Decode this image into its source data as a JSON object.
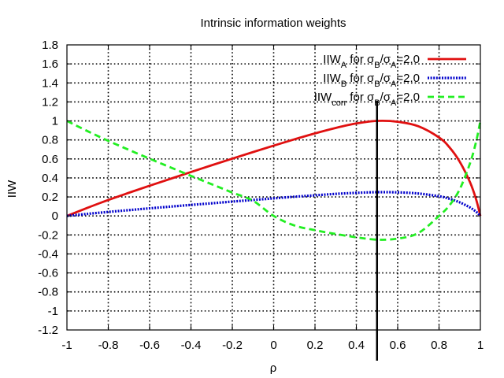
{
  "chart_data": {
    "type": "line",
    "title": "Intrinsic information weights",
    "xlabel": "ρ",
    "ylabel": "IIW",
    "xlim": [
      -1,
      1
    ],
    "ylim": [
      -1.2,
      1.8
    ],
    "xticks": [
      -1,
      -0.8,
      -0.6,
      -0.4,
      -0.2,
      0,
      0.2,
      0.4,
      0.6,
      0.8,
      1
    ],
    "xtick_labels": [
      "-1",
      "-0.8",
      "-0.6",
      "-0.4",
      "-0.2",
      "0",
      "0.2",
      "0.4",
      "0.6",
      "0.8",
      "1"
    ],
    "yticks": [
      -1.2,
      -1,
      -0.8,
      -0.6,
      -0.4,
      -0.2,
      0,
      0.2,
      0.4,
      0.6,
      0.8,
      1,
      1.2,
      1.4,
      1.6,
      1.8
    ],
    "ytick_labels": [
      "-1.2",
      "-1",
      "-0.8",
      "-0.6",
      "-0.4",
      "-0.2",
      "0",
      "0.2",
      "0.4",
      "0.6",
      "0.8",
      "1",
      "1.2",
      "1.4",
      "1.6",
      "1.8"
    ],
    "grid": true,
    "legend_position": "top-right",
    "vertical_line": {
      "x": 0.5,
      "color": "#000000"
    },
    "series": [
      {
        "name": "IIW_A for σB/σA=2.0",
        "label_main": "IIW",
        "label_sub": "A",
        "label_rest": "  for σ",
        "label_rest_sub1": "B",
        "label_rest_mid": "/σ",
        "label_rest_sub2": "A",
        "label_rest_end": "=2.0",
        "color": "#e01010",
        "style": "solid",
        "x": [
          -1,
          -0.9,
          -0.8,
          -0.7,
          -0.6,
          -0.5,
          -0.4,
          -0.3,
          -0.2,
          -0.1,
          0,
          0.1,
          0.2,
          0.3,
          0.4,
          0.5,
          0.6,
          0.7,
          0.8,
          0.85,
          0.9,
          0.95,
          0.98,
          1
        ],
        "y": [
          0,
          0.086,
          0.168,
          0.244,
          0.318,
          0.39,
          0.462,
          0.533,
          0.603,
          0.672,
          0.74,
          0.806,
          0.869,
          0.926,
          0.973,
          1.0,
          0.991,
          0.944,
          0.826,
          0.723,
          0.571,
          0.354,
          0.17,
          0
        ]
      },
      {
        "name": "IIW_B for σB/σA=2.0",
        "label_main": "IIW",
        "label_sub": "B",
        "label_rest": "  for σ",
        "label_rest_sub1": "B",
        "label_rest_mid": "/σ",
        "label_rest_sub2": "A",
        "label_rest_end": "=2.0",
        "color": "#0000cc",
        "style": "dotted",
        "x": [
          -1,
          -0.9,
          -0.8,
          -0.7,
          -0.6,
          -0.5,
          -0.4,
          -0.3,
          -0.2,
          -0.1,
          0,
          0.1,
          0.2,
          0.3,
          0.4,
          0.5,
          0.6,
          0.7,
          0.8,
          0.85,
          0.9,
          0.95,
          0.98,
          1
        ],
        "y": [
          0,
          0.022,
          0.042,
          0.061,
          0.08,
          0.098,
          0.116,
          0.133,
          0.151,
          0.168,
          0.185,
          0.202,
          0.217,
          0.232,
          0.243,
          0.25,
          0.248,
          0.236,
          0.207,
          0.181,
          0.143,
          0.089,
          0.043,
          0
        ]
      },
      {
        "name": "IIW_corr for σB/σA=2.0",
        "label_main": "IIW",
        "label_sub": "corr",
        "label_rest": " for σ",
        "label_rest_sub1": "B",
        "label_rest_mid": "/σ",
        "label_rest_sub2": "A",
        "label_rest_end": "=2.0",
        "color": "#22ee22",
        "style": "dashed",
        "x": [
          -1,
          -0.9,
          -0.8,
          -0.7,
          -0.6,
          -0.5,
          -0.4,
          -0.3,
          -0.2,
          -0.1,
          0,
          0.1,
          0.2,
          0.3,
          0.4,
          0.5,
          0.6,
          0.7,
          0.8,
          0.85,
          0.9,
          0.95,
          0.98,
          1
        ],
        "y": [
          1,
          0.892,
          0.79,
          0.695,
          0.602,
          0.512,
          0.422,
          0.334,
          0.246,
          0.16,
          0,
          -0.1,
          -0.15,
          -0.19,
          -0.225,
          -0.25,
          -0.239,
          -0.18,
          0.0,
          0.11,
          0.28,
          0.555,
          0.787,
          1
        ]
      }
    ]
  }
}
